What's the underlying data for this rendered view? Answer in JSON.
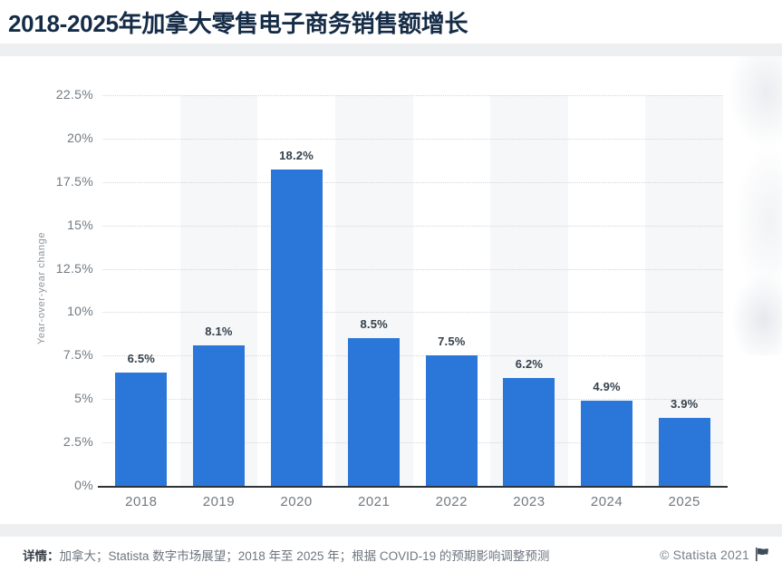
{
  "header": {
    "title": "2018-2025年加拿大零售电子商务销售额增长",
    "title_color": "#152c47"
  },
  "chart_data": {
    "type": "bar",
    "title": "2018-2025年加拿大零售电子商务销售额增长",
    "categories": [
      "2018",
      "2019",
      "2020",
      "2021",
      "2022",
      "2023",
      "2024",
      "2025"
    ],
    "values": [
      6.5,
      8.1,
      18.2,
      8.5,
      7.5,
      6.2,
      4.9,
      3.9
    ],
    "value_labels": [
      "6.5%",
      "8.1%",
      "18.2%",
      "8.5%",
      "7.5%",
      "6.2%",
      "4.9%",
      "3.9%"
    ],
    "xlabel": "",
    "ylabel": "Year-over-year change",
    "ylim": [
      0,
      22.5
    ],
    "ytick_step": 2.5,
    "yticks": [
      "0%",
      "2.5%",
      "5%",
      "7.5%",
      "10%",
      "12.5%",
      "15%",
      "17.5%",
      "20%",
      "22.5%"
    ],
    "grid": true,
    "legend_position": "none",
    "bar_color": "#2a77d9",
    "stripe_color": "#f6f7f8",
    "gridline_color": "#d4d6d8",
    "axis_color": "#2e3338",
    "label_color": "#35414d",
    "tick_color": "#717a82"
  },
  "footer": {
    "details_label": "详情：",
    "details_text": "加拿大；Statista 数字市场展望；2018 年至 2025 年；根据 COVID-19 的预期影响调整预测",
    "copyright": "© Statista 2021",
    "flag_icon_name": "flag-icon"
  }
}
